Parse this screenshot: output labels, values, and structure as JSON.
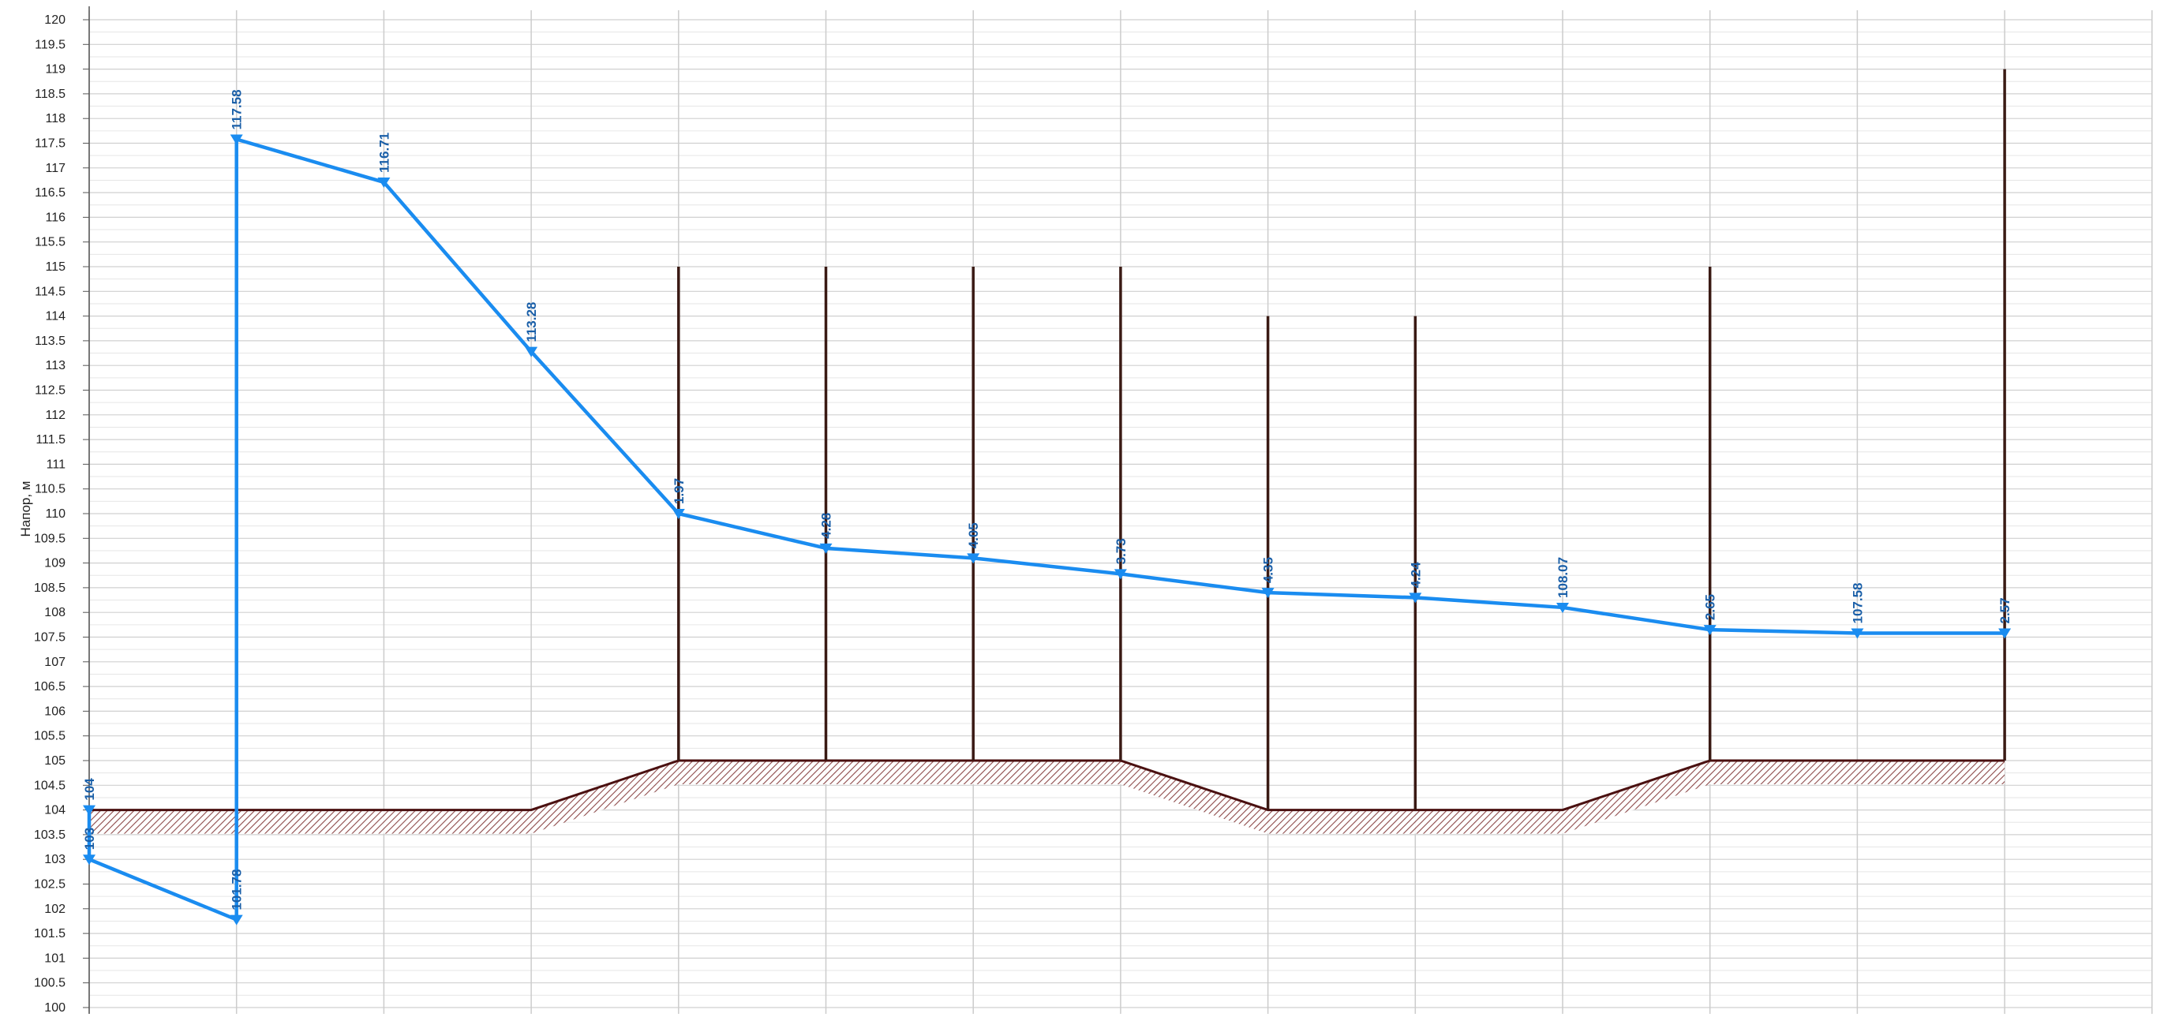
{
  "chart_data": {
    "type": "line",
    "title": "",
    "ylabel": "Напор, м",
    "xlabel": "",
    "ylim": [
      100,
      120
    ],
    "ytick_step": 0.5,
    "yticks": [
      "100",
      "100.5",
      "101",
      "101.5",
      "102",
      "102.5",
      "103",
      "103.5",
      "104",
      "104.5",
      "105",
      "105.5",
      "106",
      "106.5",
      "107",
      "107.5",
      "108",
      "108.5",
      "109",
      "109.5",
      "110",
      "110.5",
      "111",
      "111.5",
      "112",
      "112.5",
      "113",
      "113.5",
      "114",
      "114.5",
      "115",
      "115.5",
      "116",
      "116.5",
      "117",
      "117.5",
      "118",
      "118.5",
      "119",
      "119.5",
      "120"
    ],
    "grid": true,
    "x_sections": 14,
    "xlim": [
      0,
      14.0
    ],
    "colors": {
      "head": "#1a8cf0",
      "label": "#1a5fa8",
      "ground": "#4a1010",
      "pole": "#3a1a14"
    },
    "head_line": [
      {
        "x": 0,
        "y": 104.0
      },
      {
        "x": 0,
        "y": 103.0
      },
      {
        "x": 1,
        "y": 101.78
      },
      {
        "x": 1,
        "y": 117.58
      },
      {
        "x": 2,
        "y": 116.71
      },
      {
        "x": 3,
        "y": 113.28
      },
      {
        "x": 4,
        "y": 110.0
      },
      {
        "x": 5,
        "y": 109.3
      },
      {
        "x": 6,
        "y": 109.1
      },
      {
        "x": 7,
        "y": 108.78
      },
      {
        "x": 8,
        "y": 108.4
      },
      {
        "x": 9,
        "y": 108.3
      },
      {
        "x": 10,
        "y": 108.1
      },
      {
        "x": 11,
        "y": 107.65
      },
      {
        "x": 12,
        "y": 107.58
      },
      {
        "x": 13,
        "y": 107.58
      }
    ],
    "point_labels": [
      {
        "x": 0,
        "y": 104.0,
        "text": "104"
      },
      {
        "x": 0,
        "y": 103.0,
        "text": "103"
      },
      {
        "x": 1,
        "y": 101.78,
        "text": "101.78"
      },
      {
        "x": 1,
        "y": 117.58,
        "text": "117.58"
      },
      {
        "x": 2,
        "y": 116.71,
        "text": "116.71"
      },
      {
        "x": 3,
        "y": 113.28,
        "text": "113.28"
      },
      {
        "x": 4,
        "y": 110.0,
        "text": "1.97"
      },
      {
        "x": 5,
        "y": 109.3,
        "text": "4.28"
      },
      {
        "x": 6,
        "y": 109.1,
        "text": "4.05"
      },
      {
        "x": 7,
        "y": 108.78,
        "text": "3.73"
      },
      {
        "x": 8,
        "y": 108.4,
        "text": "4.35"
      },
      {
        "x": 9,
        "y": 108.3,
        "text": "4.24"
      },
      {
        "x": 10,
        "y": 108.1,
        "text": "108.07"
      },
      {
        "x": 11,
        "y": 107.65,
        "text": "2.65"
      },
      {
        "x": 12,
        "y": 107.58,
        "text": "107.58"
      },
      {
        "x": 13,
        "y": 107.58,
        "text": "2.57"
      }
    ],
    "ground_line": [
      {
        "x": 0,
        "y": 104.0
      },
      {
        "x": 3,
        "y": 104.0
      },
      {
        "x": 4,
        "y": 105.0
      },
      {
        "x": 7,
        "y": 105.0
      },
      {
        "x": 8,
        "y": 104.0
      },
      {
        "x": 10,
        "y": 104.0
      },
      {
        "x": 11,
        "y": 105.0
      },
      {
        "x": 13,
        "y": 105.0
      }
    ],
    "poles": [
      {
        "x": 4,
        "y0": 105.0,
        "y1": 115.0
      },
      {
        "x": 5,
        "y0": 105.0,
        "y1": 115.0
      },
      {
        "x": 6,
        "y0": 105.0,
        "y1": 115.0
      },
      {
        "x": 7,
        "y0": 105.0,
        "y1": 115.0
      },
      {
        "x": 8,
        "y0": 104.0,
        "y1": 114.0
      },
      {
        "x": 9,
        "y0": 104.0,
        "y1": 114.0
      },
      {
        "x": 11,
        "y0": 105.0,
        "y1": 115.0
      },
      {
        "x": 13,
        "y0": 105.0,
        "y1": 119.0
      }
    ]
  }
}
